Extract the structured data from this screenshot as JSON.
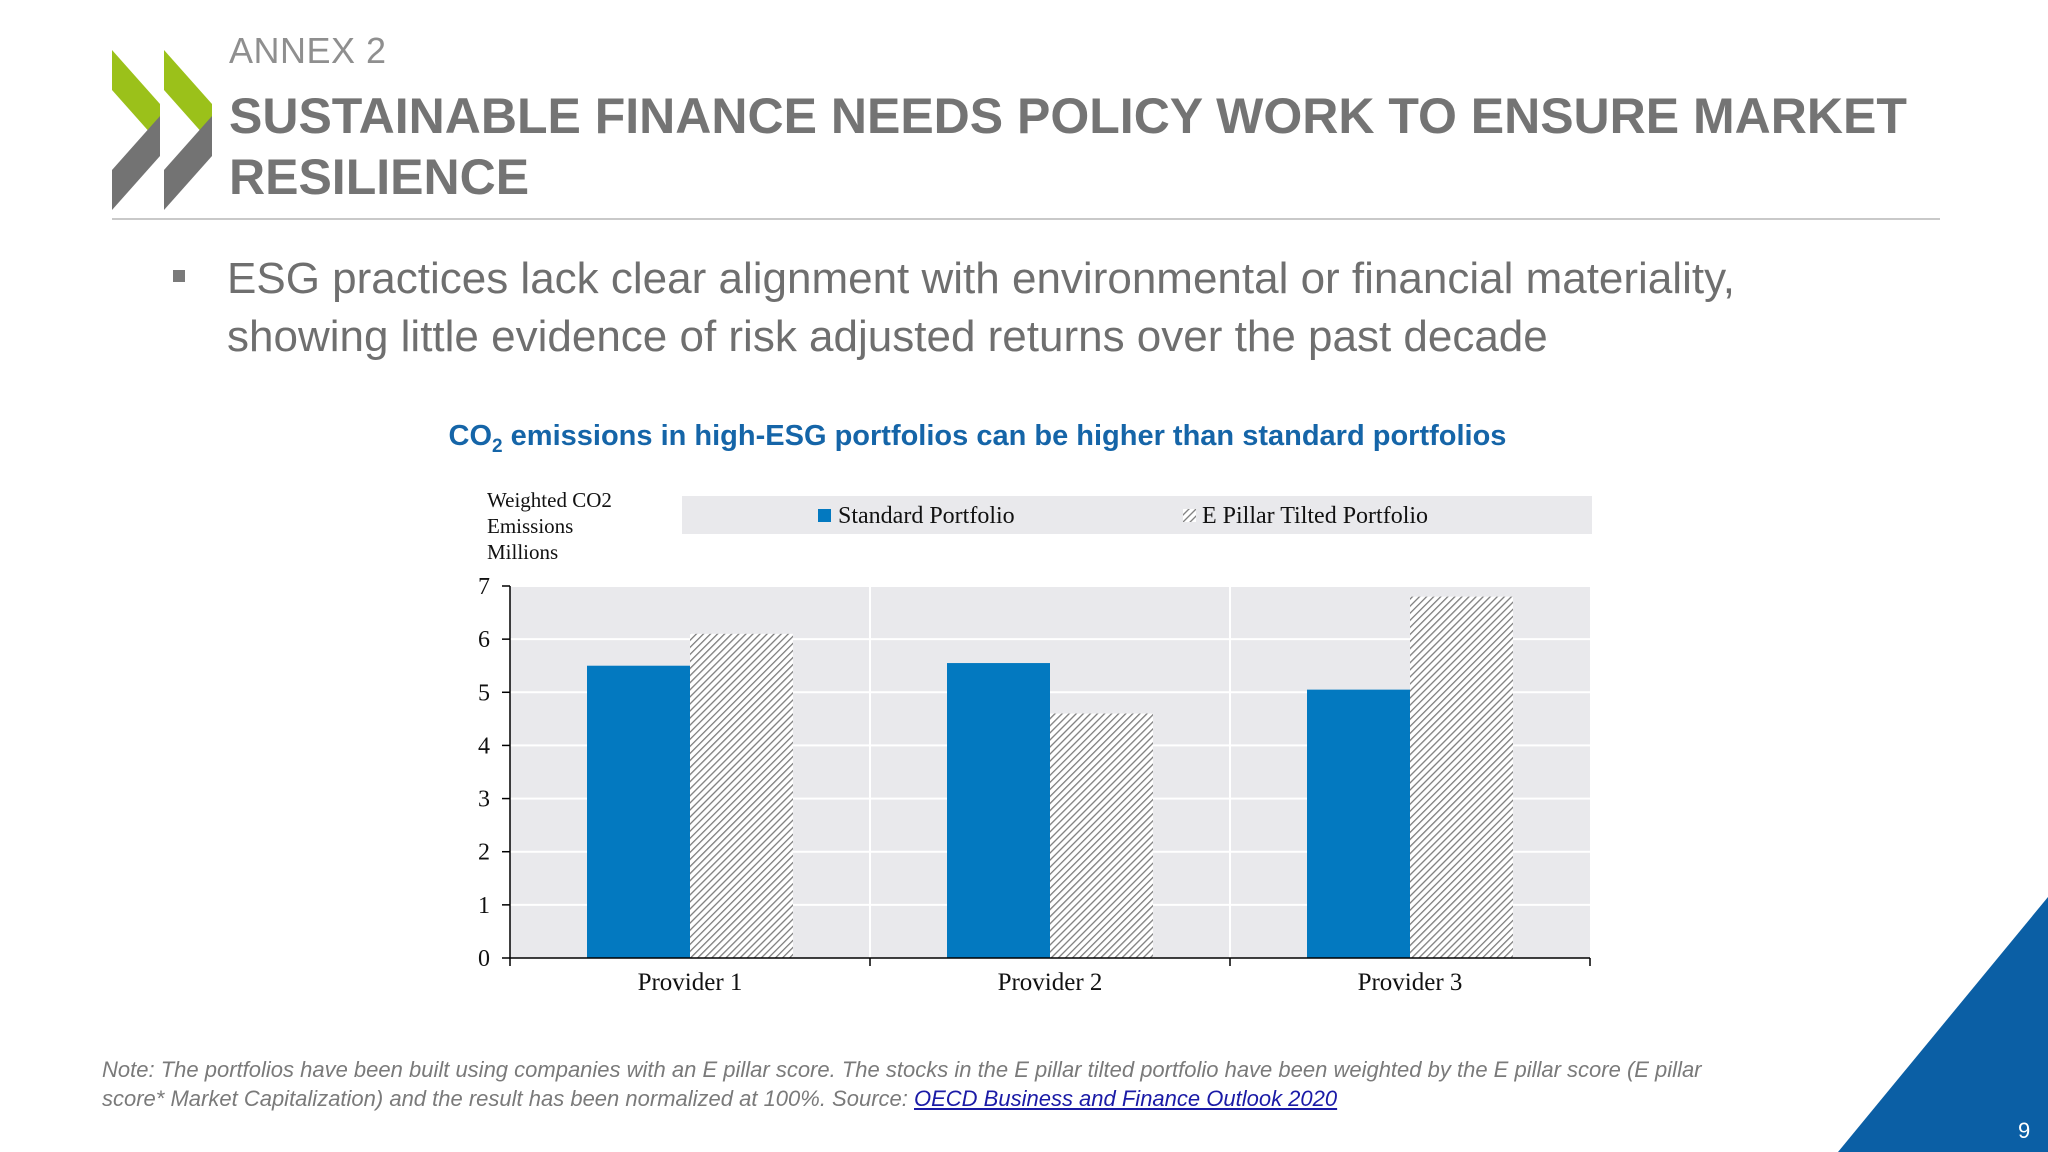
{
  "header": {
    "annex": "ANNEX 2",
    "title_line1": "SUSTAINABLE FINANCE NEEDS POLICY WORK TO ENSURE MARKET",
    "title_line2": "RESILIENCE"
  },
  "bullet": {
    "line1": "ESG practices lack clear alignment with environmental or financial materiality,",
    "line2": "showing little evidence of risk adjusted returns over the past decade"
  },
  "chart_title": {
    "prefix": "CO",
    "subscript": "2",
    "suffix": " emissions in high-ESG portfolios can be higher than standard portfolios"
  },
  "colors": {
    "standard": "#0379c0",
    "tilted_hatch": "#7d7d7d",
    "plot_bg": "#e9e9ec",
    "title_blue": "#1565a8",
    "corner_blue": "#0b5fa5"
  },
  "chart_data": {
    "type": "bar",
    "categories": [
      "Provider 1",
      "Provider 2",
      "Provider 3"
    ],
    "series": [
      {
        "name": "Standard Portfolio",
        "values": [
          5.5,
          5.55,
          5.05
        ]
      },
      {
        "name": "E Pillar Tilted Portfolio",
        "values": [
          6.1,
          4.6,
          6.8
        ]
      }
    ],
    "ylabel_lines": [
      "Weighted CO2",
      "Emissions",
      "Millions"
    ],
    "yticks": [
      "0",
      "1",
      "2",
      "3",
      "4",
      "5",
      "6",
      "7"
    ],
    "ylim": [
      0,
      7
    ],
    "grid": true,
    "legend_position": "top"
  },
  "note": {
    "text_line1": "Note: The portfolios have been built using companies with an E pillar score. The stocks in the E pillar tilted portfolio have been weighted by the E pillar score (E pillar",
    "text_line2": "score* Market Capitalization) and the result has been normalized at 100%. Source: ",
    "link_text": "OECD Business and Finance Outlook 2020"
  },
  "page_number": "9"
}
